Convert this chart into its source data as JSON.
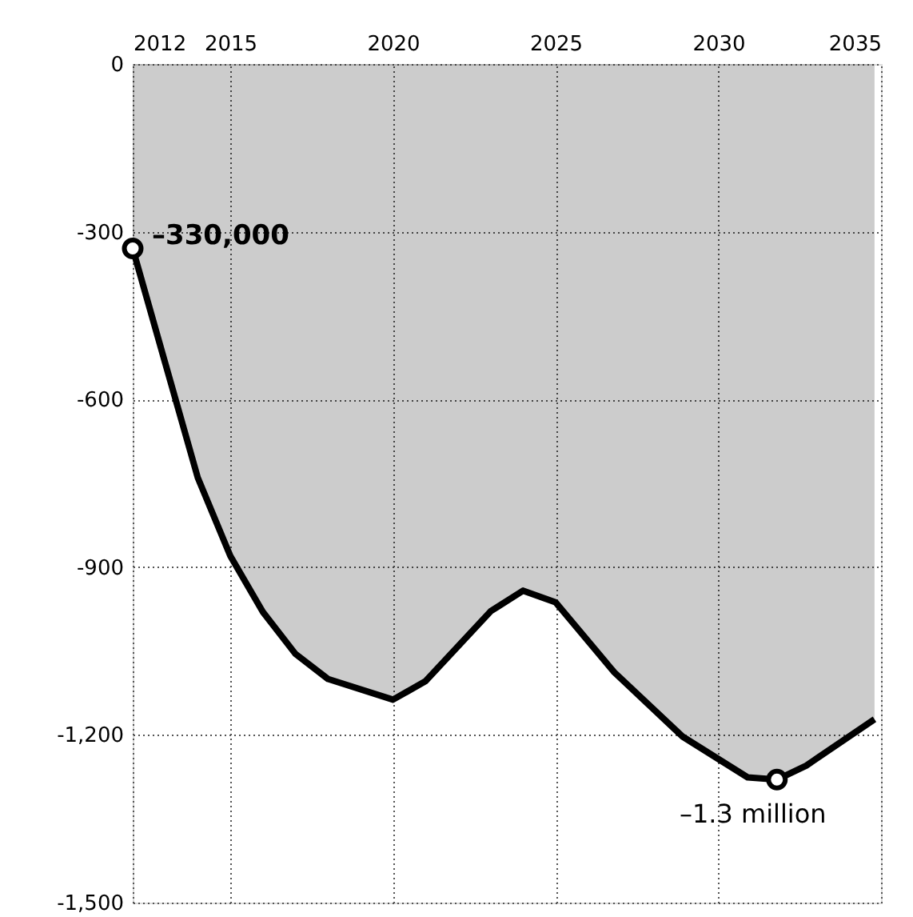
{
  "chart_data": {
    "type": "area",
    "x": [
      2012,
      2013,
      2014,
      2015,
      2016,
      2017,
      2018,
      2020,
      2021,
      2023,
      2024,
      2025,
      2026.8,
      2028.9,
      2030.9,
      2031.8,
      2032.7,
      2034.8
    ],
    "series": [
      {
        "color": "#000000",
        "values": [
          -330,
          -535,
          -740,
          -880,
          -980,
          -1055,
          -1100,
          -1137,
          -1104,
          -979,
          -942,
          -963,
          -1088,
          -1203,
          -1276,
          -1280,
          -1255,
          -1172
        ]
      },
      {
        "type": "scatter",
        "color": "#000000",
        "marker": "circle",
        "x": [
          2012,
          2031.8
        ],
        "values": [
          -330,
          -1280
        ]
      }
    ],
    "xlim": [
      2012,
      2035
    ],
    "xticks": [
      2012,
      2015,
      2020,
      2025,
      2030,
      2035
    ],
    "ylim": [
      -1500,
      0
    ],
    "yticks": [
      0,
      -300,
      -600,
      -900,
      {
        "value": -1200,
        "label": "-1,200"
      },
      {
        "value": -1500,
        "label": "-1,500"
      }
    ],
    "grid": true,
    "line_style": "solid",
    "annotations": [
      {
        "text": "–330,000",
        "x": 2012,
        "y": -330
      },
      {
        "text": "–1.3 million",
        "x": 2031.8,
        "y": -1280
      }
    ]
  }
}
